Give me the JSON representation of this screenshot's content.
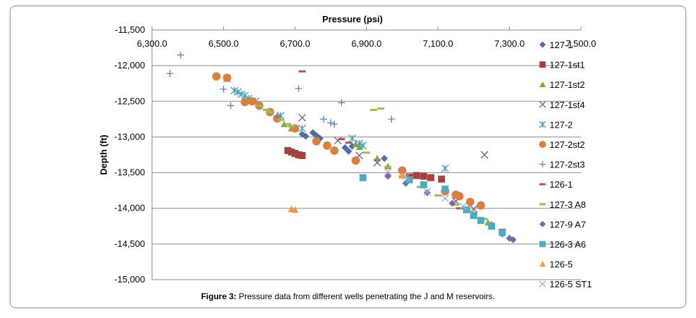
{
  "caption": {
    "label": "Figure 3:",
    "text": "Pressure data from different wells penetrating the J and M reservoirs."
  },
  "chart_data": {
    "type": "scatter",
    "title": "",
    "xlabel": "Pressure (psi)",
    "ylabel": "Depth (ft)",
    "x_axis_position": "top",
    "xlim": [
      6300,
      7500
    ],
    "ylim": [
      -15000,
      -11500
    ],
    "x_ticks": [
      "6,300.0",
      "6,500.0",
      "6,700.0",
      "6,900.0",
      "7,100.0",
      "7,300.0",
      "7,500.0"
    ],
    "y_ticks": [
      "-11,500",
      "-12,000",
      "-12,500",
      "-13,000",
      "-13,500",
      "-14,000",
      "-14,500",
      "-15,000"
    ],
    "grid": "horizontal",
    "legend_position": "right",
    "series": [
      {
        "name": "127-1",
        "marker": "diamond",
        "color": "#4f6ba8",
        "points": [
          [
            6720,
            -12960
          ],
          [
            6730,
            -12990
          ],
          [
            6750,
            -12940
          ],
          [
            6760,
            -12980
          ],
          [
            6770,
            -13020
          ],
          [
            6840,
            -13150
          ],
          [
            6850,
            -13200
          ],
          [
            6860,
            -13130
          ],
          [
            6950,
            -13300
          ]
        ]
      },
      {
        "name": "127-1st1",
        "marker": "square",
        "color": "#a8403e",
        "points": [
          [
            6680,
            -13190
          ],
          [
            6690,
            -13210
          ],
          [
            6700,
            -13230
          ],
          [
            6710,
            -13250
          ],
          [
            6720,
            -13260
          ],
          [
            7020,
            -13560
          ],
          [
            7040,
            -13540
          ],
          [
            7060,
            -13550
          ],
          [
            7080,
            -13570
          ],
          [
            7110,
            -13590
          ]
        ]
      },
      {
        "name": "127-1st2",
        "marker": "triangle",
        "color": "#86a541",
        "points": [
          [
            6670,
            -12820
          ],
          [
            6690,
            -12880
          ],
          [
            6870,
            -13100
          ],
          [
            6880,
            -13140
          ],
          [
            6930,
            -13300
          ],
          [
            6960,
            -13410
          ],
          [
            7180,
            -14020
          ],
          [
            7240,
            -14200
          ]
        ]
      },
      {
        "name": "127-1st4",
        "marker": "x",
        "color": "#6e53a0",
        "points": [
          [
            6510,
            -12180
          ],
          [
            6720,
            -12730
          ],
          [
            6820,
            -13050
          ],
          [
            6880,
            -13260
          ],
          [
            6930,
            -13360
          ],
          [
            7150,
            -13900
          ],
          [
            7200,
            -14010
          ],
          [
            7230,
            -13250
          ]
        ]
      },
      {
        "name": "127-2",
        "marker": "star",
        "color": "#3f9db7",
        "points": [
          [
            6530,
            -12350
          ],
          [
            6540,
            -12370
          ],
          [
            6550,
            -12400
          ],
          [
            6560,
            -12420
          ],
          [
            6570,
            -12460
          ],
          [
            6590,
            -12500
          ],
          [
            6660,
            -12700
          ],
          [
            6720,
            -12880
          ],
          [
            6860,
            -13020
          ],
          [
            6880,
            -13090
          ],
          [
            6890,
            -13120
          ],
          [
            7120,
            -13440
          ]
        ]
      },
      {
        "name": "127-2st2",
        "marker": "circle",
        "color": "#d9803e",
        "points": [
          [
            6480,
            -12150
          ],
          [
            6510,
            -12170
          ],
          [
            6560,
            -12510
          ],
          [
            6580,
            -12500
          ],
          [
            6600,
            -12560
          ],
          [
            6630,
            -12650
          ],
          [
            6650,
            -12740
          ],
          [
            6700,
            -12880
          ],
          [
            6760,
            -13060
          ],
          [
            6790,
            -13120
          ],
          [
            6810,
            -13190
          ],
          [
            6870,
            -13330
          ],
          [
            7000,
            -13470
          ],
          [
            7120,
            -13760
          ],
          [
            7150,
            -13810
          ],
          [
            7160,
            -13830
          ],
          [
            7190,
            -13910
          ],
          [
            7220,
            -13960
          ]
        ]
      },
      {
        "name": "127-2st3",
        "marker": "plus",
        "color": "#5285bd",
        "points": [
          [
            6350,
            -12110
          ],
          [
            6380,
            -11850
          ],
          [
            6500,
            -12330
          ],
          [
            6520,
            -12560
          ],
          [
            6650,
            -12710
          ],
          [
            6710,
            -12320
          ],
          [
            6780,
            -12750
          ],
          [
            6800,
            -12800
          ],
          [
            6810,
            -12820
          ],
          [
            6830,
            -12520
          ],
          [
            6970,
            -12750
          ]
        ]
      },
      {
        "name": "126-1",
        "marker": "dash",
        "color": "#c0504d",
        "points": [
          [
            6720,
            -12080
          ],
          [
            6830,
            -13030
          ],
          [
            6850,
            -13080
          ],
          [
            7160,
            -14000
          ],
          [
            7200,
            -14100
          ],
          [
            7280,
            -14300
          ]
        ]
      },
      {
        "name": "127-3 A8",
        "marker": "dash",
        "color": "#9bbb59",
        "points": [
          [
            6600,
            -12560
          ],
          [
            6620,
            -12620
          ],
          [
            6630,
            -12650
          ],
          [
            6660,
            -12760
          ],
          [
            6680,
            -12820
          ],
          [
            6690,
            -12850
          ],
          [
            6900,
            -13220
          ],
          [
            6920,
            -12620
          ],
          [
            6940,
            -12600
          ],
          [
            6960,
            -13420
          ],
          [
            7000,
            -13550
          ],
          [
            7050,
            -13700
          ],
          [
            7100,
            -13820
          ],
          [
            7150,
            -13950
          ],
          [
            7190,
            -14040
          ],
          [
            7230,
            -14150
          ]
        ]
      },
      {
        "name": "127-9 A7",
        "marker": "diamond",
        "color": "#7f63b2",
        "points": [
          [
            6960,
            -13550
          ],
          [
            7010,
            -13650
          ],
          [
            7070,
            -13780
          ],
          [
            7140,
            -13930
          ],
          [
            7200,
            -14100
          ],
          [
            7250,
            -14230
          ],
          [
            7280,
            -14360
          ],
          [
            7300,
            -14420
          ],
          [
            7310,
            -14440
          ]
        ]
      },
      {
        "name": "126-3 A6",
        "marker": "square",
        "color": "#4bacc6",
        "points": [
          [
            6890,
            -13570
          ],
          [
            7020,
            -13600
          ],
          [
            7060,
            -13670
          ],
          [
            7120,
            -13730
          ],
          [
            7180,
            -14020
          ],
          [
            7200,
            -14100
          ],
          [
            7220,
            -14170
          ],
          [
            7250,
            -14250
          ],
          [
            7280,
            -14340
          ]
        ]
      },
      {
        "name": "126-5",
        "marker": "triangle",
        "color": "#f79646",
        "points": [
          [
            6690,
            -14010
          ],
          [
            6700,
            -14020
          ],
          [
            7000,
            -13540
          ]
        ]
      },
      {
        "name": "126-5 ST1",
        "marker": "x",
        "color": "#9ab1d6",
        "points": [
          [
            6960,
            -13490
          ],
          [
            7010,
            -13560
          ],
          [
            7070,
            -13770
          ],
          [
            7120,
            -13860
          ],
          [
            7170,
            -13970
          ]
        ]
      }
    ]
  }
}
